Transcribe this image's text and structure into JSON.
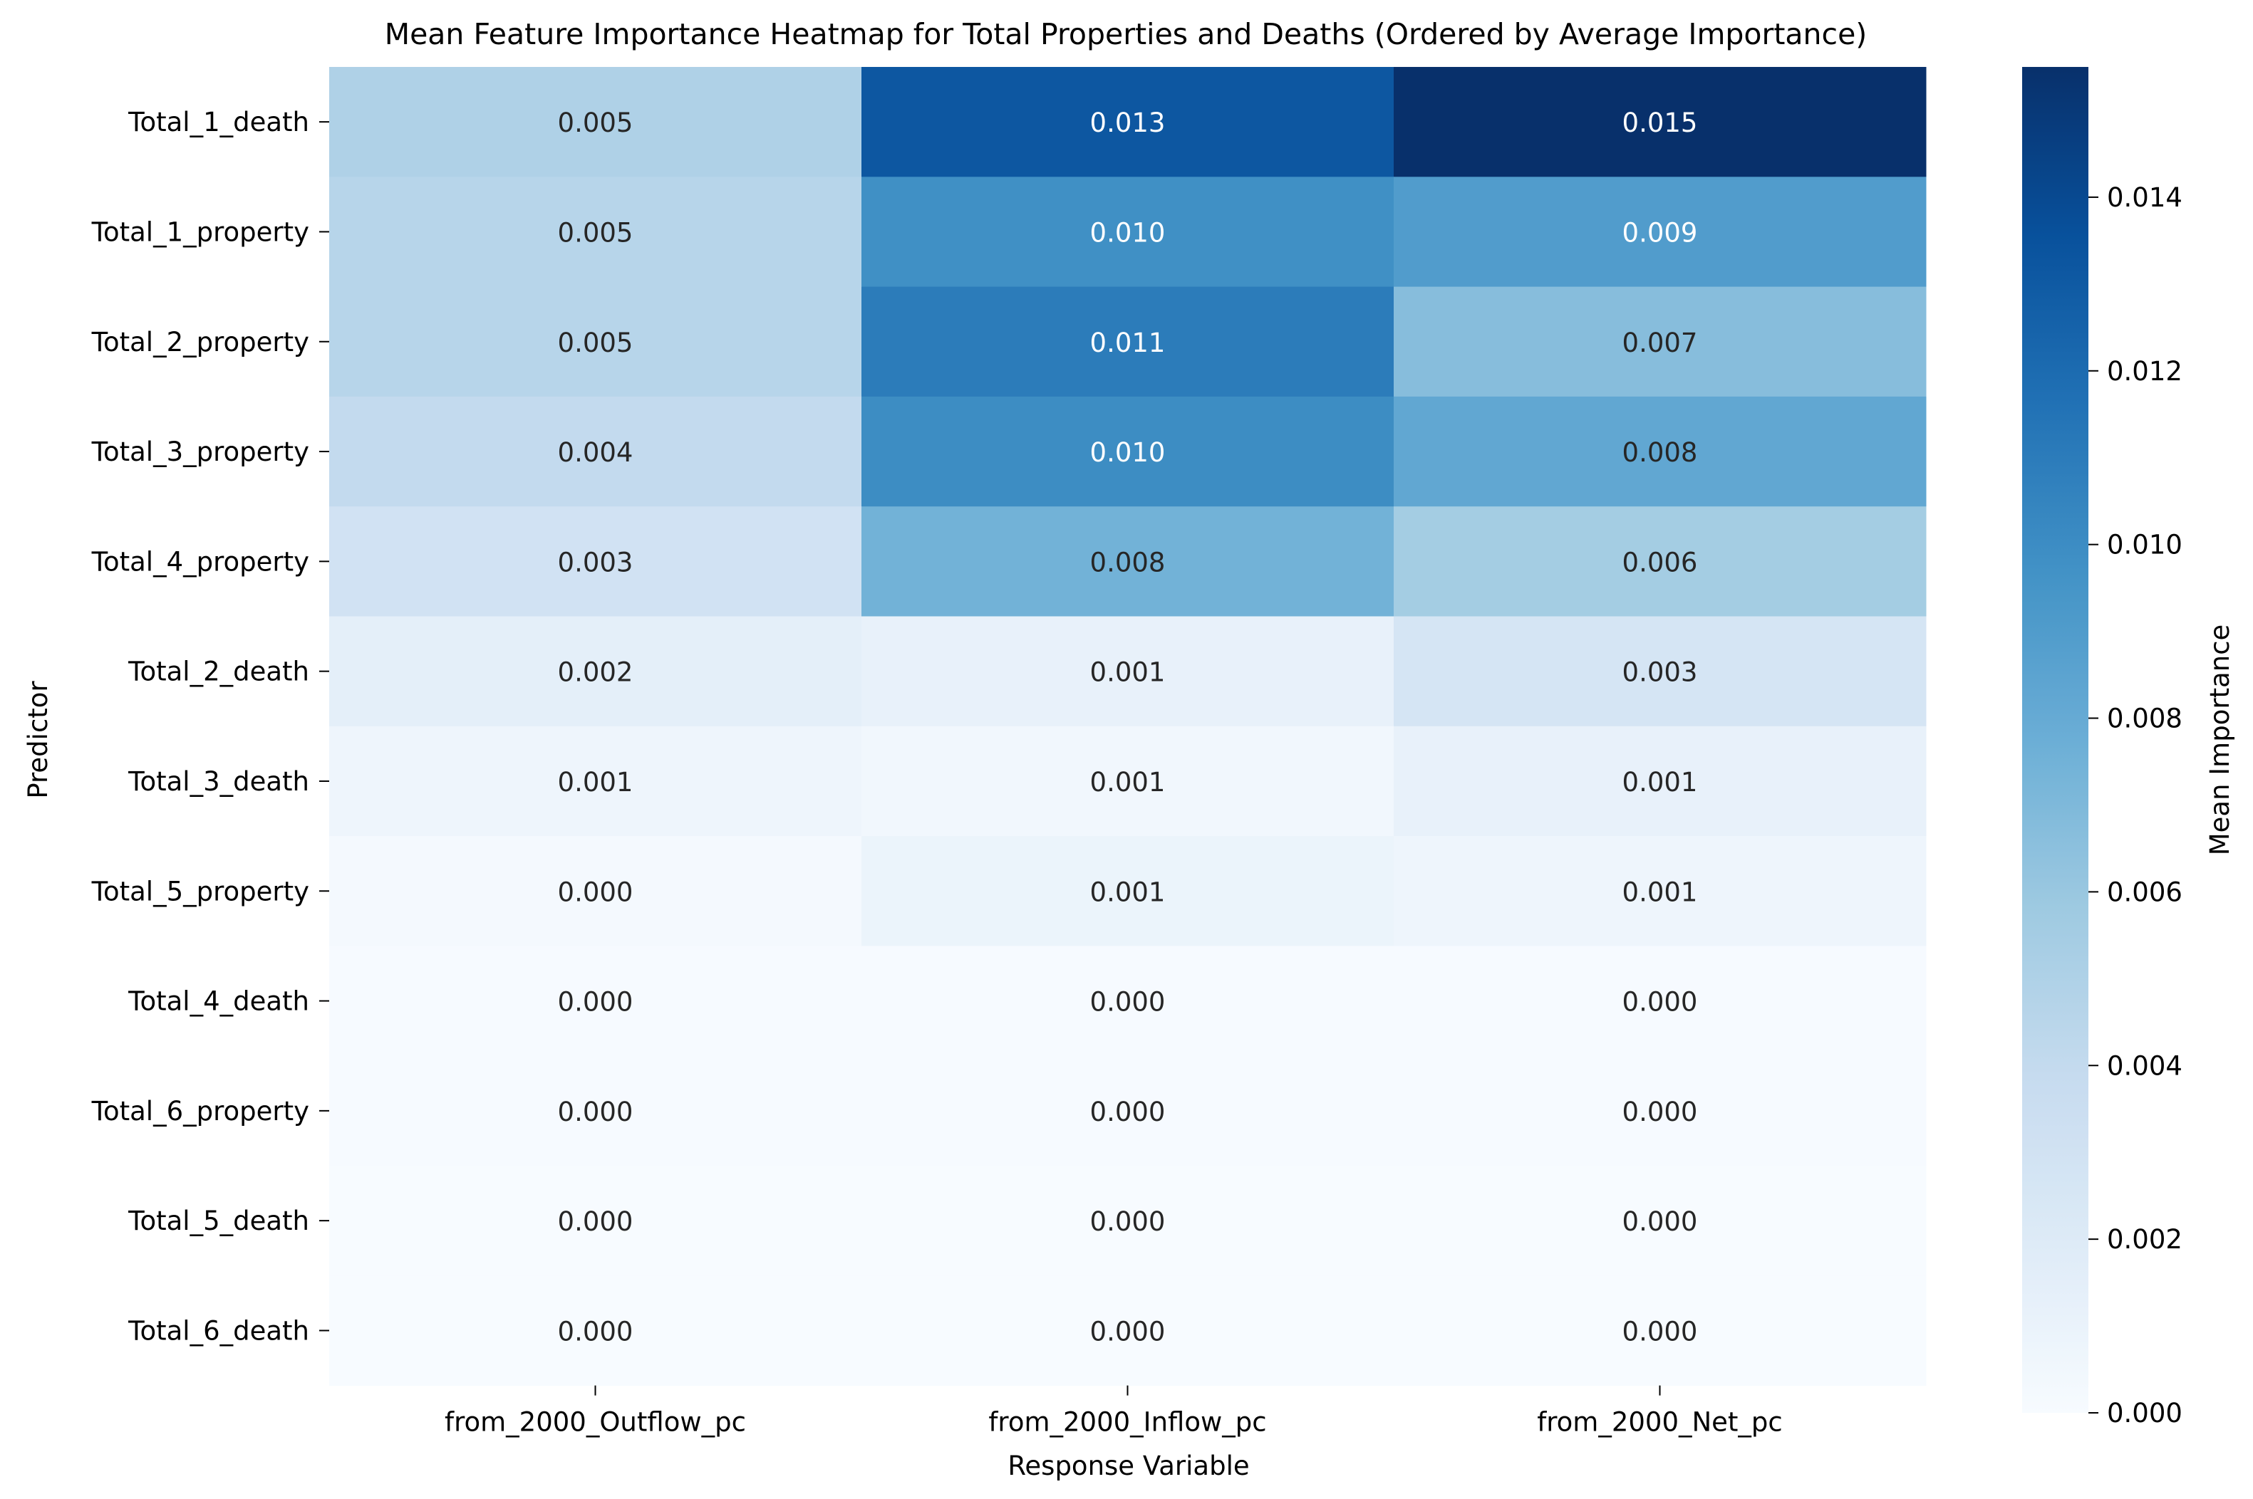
{
  "chart_data": {
    "type": "heatmap",
    "title": "Mean Feature Importance Heatmap for Total Properties and Deaths (Ordered by Average Importance)",
    "xlabel": "Response Variable",
    "ylabel": "Predictor",
    "x_categories": [
      "from_2000_Outflow_pc",
      "from_2000_Inflow_pc",
      "from_2000_Net_pc"
    ],
    "y_categories": [
      "Total_1_death",
      "Total_1_property",
      "Total_2_property",
      "Total_3_property",
      "Total_4_property",
      "Total_2_death",
      "Total_3_death",
      "Total_5_property",
      "Total_4_death",
      "Total_6_property",
      "Total_5_death",
      "Total_6_death"
    ],
    "values": [
      [
        0.005,
        0.0132,
        0.0155
      ],
      [
        0.0046,
        0.0098,
        0.009
      ],
      [
        0.0046,
        0.011,
        0.0067
      ],
      [
        0.004,
        0.01,
        0.0082
      ],
      [
        0.003,
        0.0075,
        0.0055
      ],
      [
        0.0015,
        0.0012,
        0.0027
      ],
      [
        0.0007,
        0.0005,
        0.0012
      ],
      [
        0.0002,
        0.0009,
        0.0007
      ],
      [
        0.0001,
        0.0001,
        0.0001
      ],
      [
        0.0001,
        0.0001,
        0.0001
      ],
      [
        0.0,
        0.0,
        0.0
      ],
      [
        0.0,
        0.0,
        0.0
      ]
    ],
    "annotations": [
      [
        "0.005",
        "0.013",
        "0.015"
      ],
      [
        "0.005",
        "0.010",
        "0.009"
      ],
      [
        "0.005",
        "0.011",
        "0.007"
      ],
      [
        "0.004",
        "0.010",
        "0.008"
      ],
      [
        "0.003",
        "0.008",
        "0.006"
      ],
      [
        "0.002",
        "0.001",
        "0.003"
      ],
      [
        "0.001",
        "0.001",
        "0.001"
      ],
      [
        "0.000",
        "0.001",
        "0.001"
      ],
      [
        "0.000",
        "0.000",
        "0.000"
      ],
      [
        "0.000",
        "0.000",
        "0.000"
      ],
      [
        "0.000",
        "0.000",
        "0.000"
      ],
      [
        "0.000",
        "0.000",
        "0.000"
      ]
    ],
    "colormap": "Blues",
    "color_range": [
      0,
      0.0155
    ],
    "colorbar": {
      "label": "Mean Importance",
      "ticks": [
        0.0,
        0.002,
        0.004,
        0.006,
        0.008,
        0.01,
        0.012,
        0.014
      ],
      "tick_labels": [
        "0.000",
        "0.002",
        "0.004",
        "0.006",
        "0.008",
        "0.010",
        "0.012",
        "0.014"
      ]
    },
    "text_color_dark": "#262626",
    "text_color_light": "#ffffff"
  }
}
